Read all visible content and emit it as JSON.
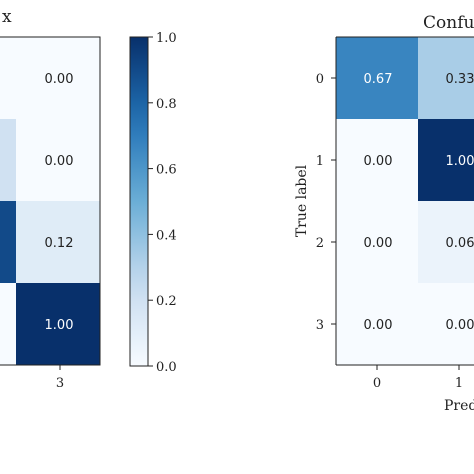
{
  "chart_data": [
    {
      "type": "heatmap",
      "title": "x",
      "visible_columns": [
        {
          "values": [
            null,
            null,
            null,
            0.0
          ]
        },
        {
          "values": [
            null,
            null,
            null,
            0.0
          ]
        },
        {
          "values": [
            null,
            null,
            0.12,
            null
          ]
        },
        {
          "values": [
            null,
            null,
            null,
            1.0
          ]
        }
      ],
      "cell_labels": [
        "0.00",
        "0.00",
        "0.12",
        "1.00"
      ],
      "cell_values": [
        0.0,
        0.0,
        0.12,
        1.0
      ],
      "left_sliver_values": [
        0.0,
        0.2,
        0.9,
        0.0
      ],
      "x_tick_labels": [
        "3"
      ],
      "colorbar": {
        "min": 0.0,
        "max": 1.0,
        "ticks": [
          "0.0",
          "0.2",
          "0.4",
          "0.6",
          "0.8",
          "1.0"
        ]
      },
      "colormap": [
        "#f7fbff",
        "#c6dbef",
        "#6baed6",
        "#2171b5",
        "#08306b"
      ]
    },
    {
      "type": "heatmap",
      "title": "Confu",
      "ylabel": "True label",
      "xlabel": "Pred",
      "y_tick_labels": [
        "0",
        "1",
        "2",
        "3"
      ],
      "x_tick_labels": [
        "0",
        "1"
      ],
      "rows": [
        {
          "values": [
            0.67,
            0.33
          ],
          "labels": [
            "0.67",
            "0.33"
          ]
        },
        {
          "values": [
            0.0,
            1.0
          ],
          "labels": [
            "0.00",
            "1.00"
          ]
        },
        {
          "values": [
            0.0,
            0.06
          ],
          "labels": [
            "0.00",
            "0.06"
          ]
        },
        {
          "values": [
            0.0,
            0.0
          ],
          "labels": [
            "0.00",
            "0.00"
          ]
        }
      ]
    }
  ]
}
